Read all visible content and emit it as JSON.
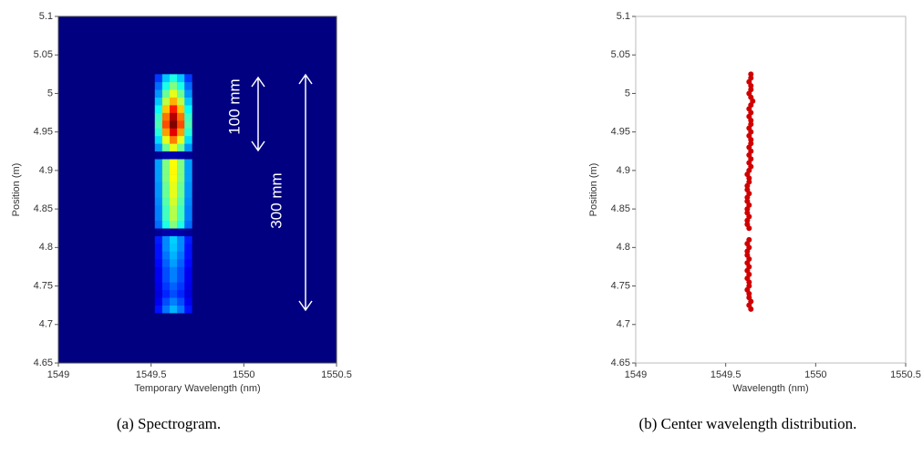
{
  "chart_data": [
    {
      "type": "heatmap",
      "caption": "(a) Spectrogram.",
      "xlabel": "Temporary Wavelength (nm)",
      "ylabel": "Position (m)",
      "xlim": [
        1549,
        1550.5
      ],
      "xticks": [
        1549,
        1549.5,
        1550,
        1550.5
      ],
      "ylim": [
        4.65,
        5.1
      ],
      "yticks": [
        4.65,
        4.7,
        4.75,
        4.8,
        4.85,
        4.9,
        4.95,
        5,
        5.05,
        5.1
      ],
      "x": [
        1549.54,
        1549.58,
        1549.62,
        1549.66,
        1549.7
      ],
      "y": [
        4.72,
        4.73,
        4.74,
        4.75,
        4.76,
        4.77,
        4.78,
        4.79,
        4.8,
        4.81,
        4.82,
        4.83,
        4.84,
        4.85,
        4.86,
        4.87,
        4.88,
        4.89,
        4.9,
        4.91,
        4.92,
        4.93,
        4.94,
        4.95,
        4.96,
        4.97,
        4.98,
        4.99,
        5,
        5.01,
        5.02
      ],
      "values": [
        [
          0.14,
          0.24,
          0.3,
          0.24,
          0.14
        ],
        [
          0.11,
          0.2,
          0.25,
          0.2,
          0.11
        ],
        [
          0.09,
          0.16,
          0.2,
          0.16,
          0.09
        ],
        [
          0.1,
          0.18,
          0.22,
          0.18,
          0.1
        ],
        [
          0.11,
          0.2,
          0.25,
          0.2,
          0.11
        ],
        [
          0.11,
          0.2,
          0.25,
          0.2,
          0.11
        ],
        [
          0.13,
          0.22,
          0.28,
          0.22,
          0.13
        ],
        [
          0.14,
          0.24,
          0.3,
          0.24,
          0.14
        ],
        [
          0.14,
          0.26,
          0.32,
          0.26,
          0.14
        ],
        [
          0.15,
          0.26,
          0.33,
          0.26,
          0.15
        ],
        [
          0.02,
          0.04,
          0.05,
          0.04,
          0.02
        ],
        [
          0.23,
          0.4,
          0.5,
          0.4,
          0.23
        ],
        [
          0.25,
          0.44,
          0.55,
          0.44,
          0.25
        ],
        [
          0.25,
          0.44,
          0.55,
          0.44,
          0.25
        ],
        [
          0.26,
          0.46,
          0.58,
          0.46,
          0.26
        ],
        [
          0.27,
          0.48,
          0.6,
          0.48,
          0.27
        ],
        [
          0.27,
          0.48,
          0.6,
          0.48,
          0.27
        ],
        [
          0.28,
          0.5,
          0.62,
          0.5,
          0.28
        ],
        [
          0.28,
          0.5,
          0.63,
          0.5,
          0.28
        ],
        [
          0.28,
          0.5,
          0.62,
          0.5,
          0.28
        ],
        [
          0.02,
          0.04,
          0.05,
          0.04,
          0.02
        ],
        [
          0.27,
          0.48,
          0.6,
          0.48,
          0.27
        ],
        [
          0.34,
          0.6,
          0.75,
          0.6,
          0.34
        ],
        [
          0.41,
          0.72,
          0.9,
          0.72,
          0.41
        ],
        [
          0.45,
          0.8,
          1,
          0.8,
          0.45
        ],
        [
          0.43,
          0.76,
          0.95,
          0.76,
          0.43
        ],
        [
          0.38,
          0.68,
          0.85,
          0.68,
          0.38
        ],
        [
          0.32,
          0.56,
          0.7,
          0.56,
          0.32
        ],
        [
          0.27,
          0.48,
          0.6,
          0.48,
          0.27
        ],
        [
          0.23,
          0.4,
          0.5,
          0.4,
          0.23
        ],
        [
          0.18,
          0.32,
          0.4,
          0.32,
          0.18
        ]
      ],
      "annotations": [
        "100 mm",
        "300 mm"
      ]
    },
    {
      "type": "scatter",
      "caption": "(b) Center wavelength distribution.",
      "xlabel": "Wavelength (nm)",
      "ylabel": "Position (m)",
      "xlim": [
        1549,
        1550.5
      ],
      "xticks": [
        1549,
        1549.5,
        1550,
        1550.5
      ],
      "ylim": [
        4.65,
        5.1
      ],
      "yticks": [
        4.65,
        4.7,
        4.75,
        4.8,
        4.85,
        4.9,
        4.95,
        5,
        5.05,
        5.1
      ],
      "color": "#d00000",
      "x": [
        1549.64,
        1549.63,
        1549.64,
        1549.63,
        1549.63,
        1549.62,
        1549.63,
        1549.63,
        1549.62,
        1549.63,
        1549.62,
        1549.63,
        1549.62,
        1549.63,
        1549.62,
        1549.62,
        1549.63,
        1549.62,
        1549.63,
        1549.63,
        1549.62,
        1549.62,
        1549.63,
        1549.62,
        1549.62,
        1549.63,
        1549.62,
        1549.62,
        1549.63,
        1549.62,
        1549.62,
        1549.63,
        1549.63,
        1549.62,
        1549.63,
        1549.64,
        1549.63,
        1549.64,
        1549.63,
        1549.64,
        1549.63,
        1549.64,
        1549.64,
        1549.63,
        1549.64,
        1549.63,
        1549.64,
        1549.64,
        1549.63,
        1549.64,
        1549.63,
        1549.64,
        1549.65,
        1549.64,
        1549.63,
        1549.64,
        1549.64,
        1549.63,
        1549.64,
        1549.64
      ],
      "values": [
        4.72,
        4.725,
        4.73,
        4.735,
        4.74,
        4.745,
        4.75,
        4.755,
        4.76,
        4.765,
        4.77,
        4.775,
        4.78,
        4.785,
        4.79,
        4.795,
        4.8,
        4.805,
        4.81,
        4.825,
        4.83,
        4.835,
        4.84,
        4.845,
        4.85,
        4.855,
        4.86,
        4.865,
        4.87,
        4.875,
        4.88,
        4.885,
        4.89,
        4.895,
        4.9,
        4.905,
        4.91,
        4.915,
        4.92,
        4.925,
        4.93,
        4.935,
        4.94,
        4.945,
        4.95,
        4.955,
        4.96,
        4.965,
        4.97,
        4.975,
        4.98,
        4.985,
        4.99,
        4.995,
        5,
        5.005,
        5.01,
        5.015,
        5.02,
        5.025
      ]
    }
  ]
}
